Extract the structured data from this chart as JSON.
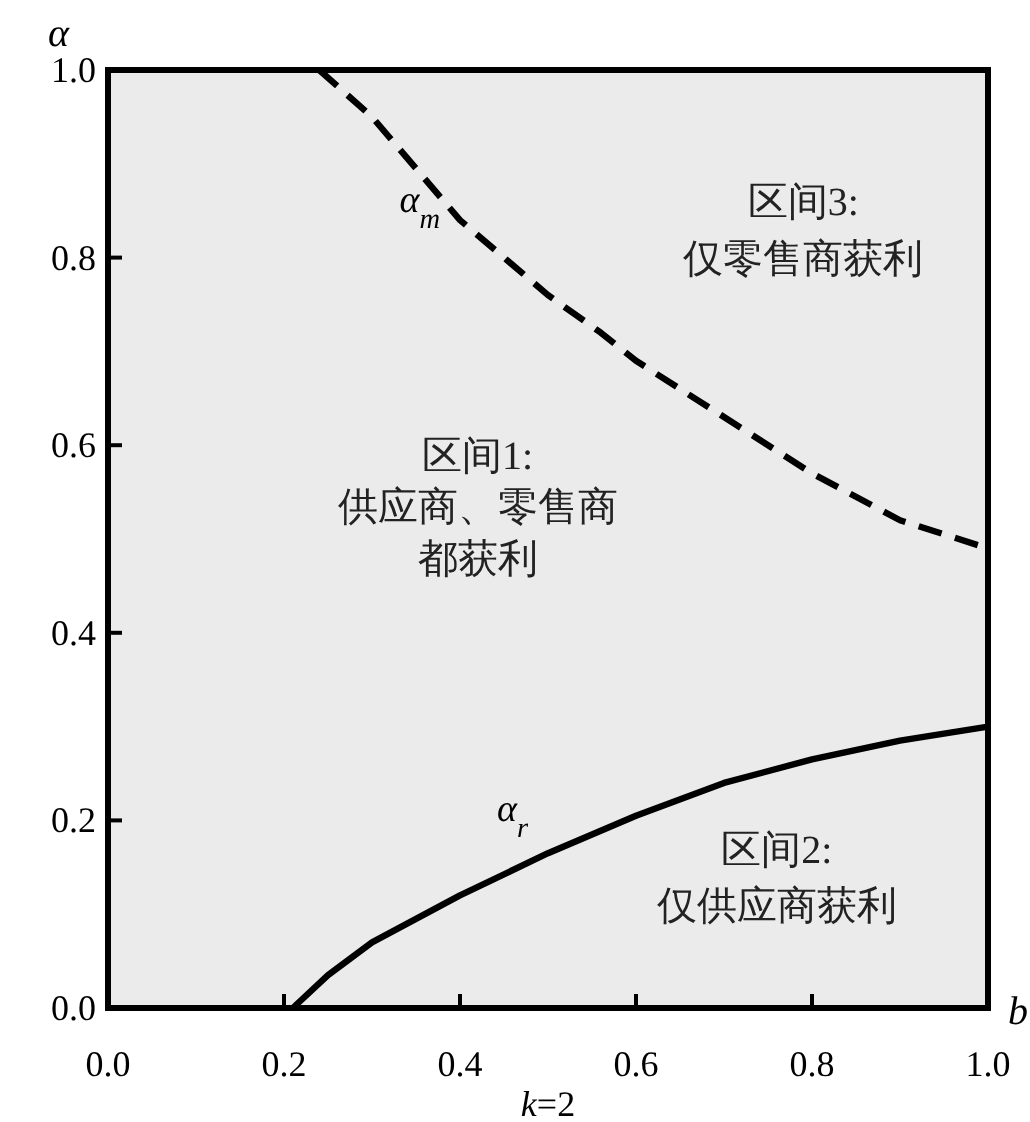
{
  "chart_data": {
    "type": "line",
    "xlabel": "b",
    "ylabel": "α",
    "xlim": [
      0,
      1
    ],
    "ylim": [
      0,
      1
    ],
    "xticks": [
      {
        "value": 0,
        "label": "0.0"
      },
      {
        "value": 0.2,
        "label": "0.2"
      },
      {
        "value": 0.4,
        "label": "0.4"
      },
      {
        "value": 0.6,
        "label": "0.6"
      },
      {
        "value": 0.8,
        "label": "0.8"
      },
      {
        "value": 1,
        "label": "1.0"
      }
    ],
    "yticks": [
      {
        "value": 0,
        "label": "0.0"
      },
      {
        "value": 0.2,
        "label": "0.2"
      },
      {
        "value": 0.4,
        "label": "0.4"
      },
      {
        "value": 0.6,
        "label": "0.6"
      },
      {
        "value": 0.8,
        "label": "0.8"
      },
      {
        "value": 1,
        "label": "1.0"
      }
    ],
    "series": [
      {
        "name": "α$_{m}$",
        "color": "#000000",
        "line_style": "dashed",
        "x": [
          0.24,
          0.3,
          0.4,
          0.5,
          0.56,
          0.6,
          0.7,
          0.8,
          0.9,
          1.0
        ],
        "values": [
          1.0,
          0.95,
          0.84,
          0.76,
          0.72,
          0.69,
          0.63,
          0.57,
          0.52,
          0.49
        ]
      },
      {
        "name": "α$_{r}$",
        "color": "#000000",
        "line_style": "solid",
        "x": [
          0.21,
          0.25,
          0.3,
          0.4,
          0.5,
          0.6,
          0.7,
          0.8,
          0.9,
          1.0
        ],
        "values": [
          0,
          0.035,
          0.07,
          0.12,
          0.165,
          0.205,
          0.24,
          0.265,
          0.285,
          0.3
        ]
      }
    ],
    "annotations": [
      "区间3:",
      "仅零售商获利",
      "区间1:",
      "供应商、零售商",
      "都获利",
      "区间2:",
      "仅供应商获利",
      "k=2"
    ]
  }
}
